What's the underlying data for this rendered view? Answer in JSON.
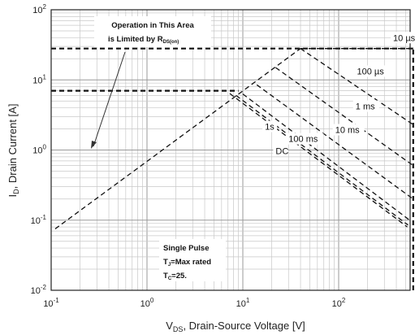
{
  "chart_data": {
    "type": "line",
    "xscale": "log",
    "yscale": "log",
    "xlim": [
      0.1,
      600
    ],
    "ylim": [
      0.01,
      100
    ],
    "grid": true,
    "x_ticks": [
      {
        "v": 0.1,
        "base": "10",
        "exp": "-1"
      },
      {
        "v": 1,
        "base": "10",
        "exp": "0"
      },
      {
        "v": 10,
        "base": "10",
        "exp": "1"
      },
      {
        "v": 100,
        "base": "10",
        "exp": "2"
      }
    ],
    "y_ticks": [
      {
        "v": 0.01,
        "base": "10",
        "exp": "-2"
      },
      {
        "v": 0.1,
        "base": "10",
        "exp": "-1"
      },
      {
        "v": 1,
        "base": "10",
        "exp": "0"
      },
      {
        "v": 10,
        "base": "10",
        "exp": "1"
      },
      {
        "v": 100,
        "base": "10",
        "exp": "2"
      }
    ],
    "xlabel": {
      "main": "V",
      "sub": "DS",
      "rest": ", Drain-Source Voltage [V]"
    },
    "ylabel": {
      "main": "I",
      "sub": "D",
      "rest": ", Drain Current [A]"
    },
    "annotations": {
      "area_line1": "Operation in This Area",
      "area_line2_main": "is Limited by R",
      "area_line2_sub": "DS(on)",
      "pulse_line1": "Single Pulse",
      "pulse_line2_main": "T",
      "pulse_line2_sub": "J",
      "pulse_line2_rest": "=Max rated",
      "pulse_line3_main": "T",
      "pulse_line3_sub": "C",
      "pulse_line3_rest": "=25."
    },
    "limits": {
      "rds_on": [
        [
          0.11,
          0.075
        ],
        [
          40,
          28
        ]
      ],
      "max_current_pulsed": 28,
      "max_current_dc": 7,
      "max_voltage": 600
    },
    "series": [
      {
        "name": "10 µs",
        "points": [
          [
            40,
            28
          ],
          [
            600,
            28
          ]
        ]
      },
      {
        "name": "100 µs",
        "points": [
          [
            40,
            28
          ],
          [
            600,
            2.3
          ]
        ]
      },
      {
        "name": "1 ms",
        "points": [
          [
            22,
            15
          ],
          [
            600,
            0.6
          ]
        ]
      },
      {
        "name": "10 ms",
        "points": [
          [
            14,
            8.5
          ],
          [
            600,
            0.2
          ]
        ]
      },
      {
        "name": "100 ms",
        "points": [
          [
            10,
            6.3
          ],
          [
            550,
            0.1
          ]
        ]
      },
      {
        "name": "1s",
        "points": [
          [
            8.5,
            6.0
          ],
          [
            530,
            0.085
          ]
        ]
      },
      {
        "name": "DC",
        "points": [
          [
            7.3,
            6.4
          ],
          [
            520,
            0.08
          ]
        ]
      }
    ],
    "curve_labels": [
      {
        "text": "10 µs",
        "x": 370,
        "y": 36
      },
      {
        "text": "100 µs",
        "x": 155,
        "y": 12
      },
      {
        "text": "1 ms",
        "x": 150,
        "y": 3.8
      },
      {
        "text": "10 ms",
        "x": 92,
        "y": 1.75
      },
      {
        "text": "100 ms",
        "x": 30,
        "y": 1.3
      },
      {
        "text": "1s",
        "x": 17,
        "y": 1.95
      },
      {
        "text": "DC",
        "x": 22,
        "y": 0.88
      }
    ]
  }
}
